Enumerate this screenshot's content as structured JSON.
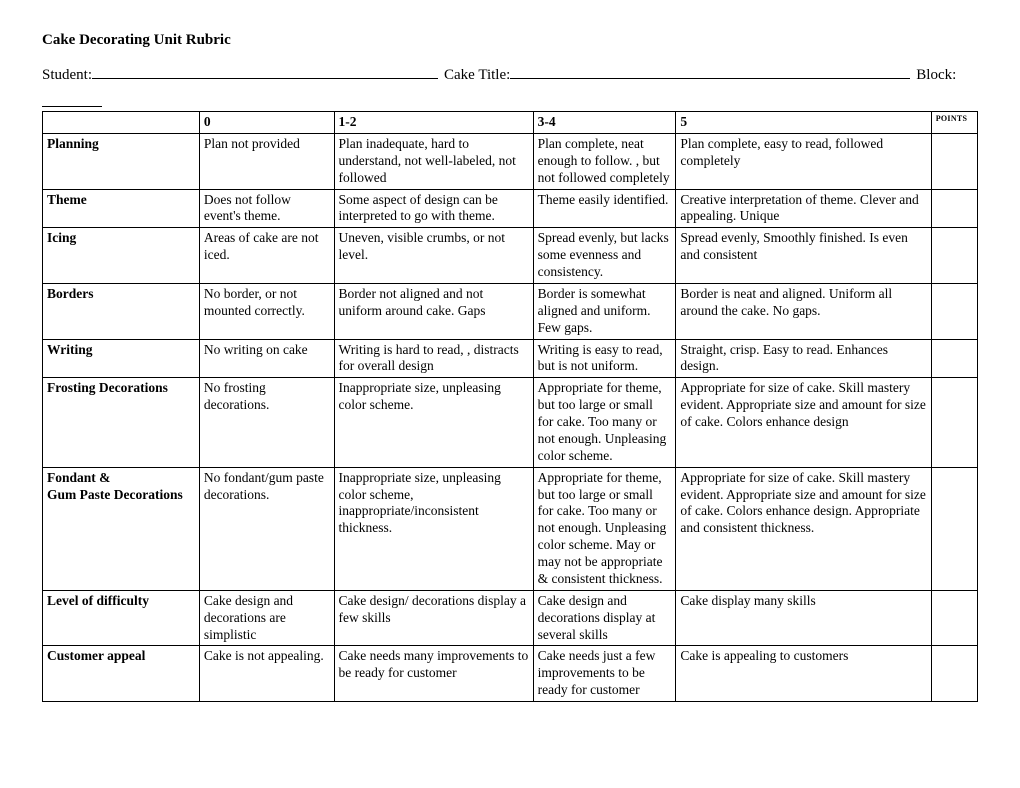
{
  "title": "Cake Decorating Unit Rubric",
  "fields": {
    "student_label": "Student:",
    "caketitle_label": "Cake Title:",
    "block_label": "Block:"
  },
  "table": {
    "headers": {
      "blank": "",
      "c0": "0",
      "c12": "1-2",
      "c34": "3-4",
      "c5": "5",
      "points": "POINTS"
    },
    "rows": [
      {
        "label": "Planning",
        "c0": "Plan not provided",
        "c12": "Plan inadequate, hard to understand, not well-labeled, not followed",
        "c34": "Plan complete, neat enough to follow. , but not followed completely",
        "c5": "Plan complete, easy to read, followed completely",
        "points": ""
      },
      {
        "label": "Theme",
        "c0": "Does not follow event's theme.",
        "c12": "Some aspect of design can be interpreted to go with theme.",
        "c34": "Theme easily identified.",
        "c5": "Creative interpretation of theme.  Clever and appealing. Unique",
        "points": ""
      },
      {
        "label": "Icing",
        "c0": "Areas of cake are not iced.",
        "c12": "Uneven, visible crumbs, or not level.",
        "c34": "Spread evenly, but lacks some evenness and consistency.",
        "c5": "Spread evenly, Smoothly finished. Is even and consistent",
        "points": ""
      },
      {
        "label": "Borders",
        "c0": "No border, or not mounted correctly.",
        "c12": "Border not aligned and not uniform around cake. Gaps",
        "c34": "Border is somewhat aligned and uniform. Few gaps.",
        "c5": "Border is neat and aligned.  Uniform all around the cake.  No gaps.",
        "points": ""
      },
      {
        "label": "Writing",
        "c0": "No writing on cake",
        "c12": "Writing is hard to read, , distracts for overall design",
        "c34": "Writing is easy to read, but is not uniform.",
        "c5": "Straight, crisp. Easy to read. Enhances design.",
        "points": ""
      },
      {
        "label": "Frosting Decorations",
        "c0": "No frosting decorations.",
        "c12": "Inappropriate  size, unpleasing color scheme.",
        "c34": "Appropriate for theme, but too large or small for cake. Too many or not enough. Unpleasing color scheme.",
        "c5": "Appropriate for size of cake. Skill mastery evident.  Appropriate size and amount for size of cake.  Colors enhance design",
        "points": ""
      },
      {
        "label": "Fondant &\nGum Paste Decorations",
        "c0": "No fondant/gum paste decorations.",
        "c12": "Inappropriate  size, unpleasing color scheme, inappropriate/inconsistent thickness.",
        "c34": "Appropriate for theme, but too large or small for cake. Too many or not enough. Unpleasing color scheme. May or may not be appropriate & consistent thickness.",
        "c5": "Appropriate for size of cake. Skill mastery evident.  Appropriate size and amount for size of cake.  Colors enhance design. Appropriate and consistent thickness.",
        "points": ""
      },
      {
        "label": "Level of difficulty",
        "c0": "Cake design and decorations are simplistic",
        "c12": "Cake design/ decorations display a few skills",
        "c34": "Cake design and decorations display at several skills",
        "c5": "Cake display many skills",
        "points": ""
      },
      {
        "label": "Customer appeal",
        "c0": "Cake is not appealing.",
        "c12": "Cake needs many improvements to be ready for customer",
        "c34": "Cake needs just a few improvements to be ready for customer",
        "c5": "Cake is appealing to customers",
        "points": ""
      }
    ]
  }
}
